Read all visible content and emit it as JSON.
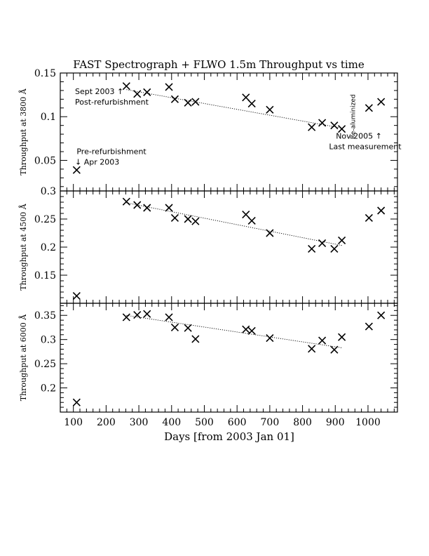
{
  "chart_data": {
    "type": "scatter",
    "title": "FAST Spectrograph + FLWO 1.5m Throughput vs time",
    "xlabel": "Days [from 2003 Jan 01]",
    "xlim": [
      60,
      1090
    ],
    "x_ticks": [
      100,
      200,
      300,
      400,
      500,
      600,
      700,
      800,
      900,
      1000
    ],
    "x_tick_labels": [
      "100",
      "200",
      "300",
      "400",
      "500",
      "600",
      "700",
      "800",
      "900",
      "1000"
    ],
    "marker": "x",
    "panels": [
      {
        "ylabel": "Throughput at 3800 Å",
        "ylim": [
          0.015,
          0.15
        ],
        "y_ticks": [
          0.05,
          0.1,
          0.15
        ],
        "y_tick_labels": [
          "0.05",
          "0.1",
          "0.15"
        ],
        "points": [
          {
            "x": 110,
            "y": 0.039
          },
          {
            "x": 262,
            "y": 0.135
          },
          {
            "x": 295,
            "y": 0.126
          },
          {
            "x": 325,
            "y": 0.128
          },
          {
            "x": 392,
            "y": 0.134
          },
          {
            "x": 410,
            "y": 0.12
          },
          {
            "x": 450,
            "y": 0.116
          },
          {
            "x": 473,
            "y": 0.117
          },
          {
            "x": 627,
            "y": 0.122
          },
          {
            "x": 645,
            "y": 0.115
          },
          {
            "x": 700,
            "y": 0.108
          },
          {
            "x": 828,
            "y": 0.088
          },
          {
            "x": 860,
            "y": 0.093
          },
          {
            "x": 897,
            "y": 0.09
          },
          {
            "x": 920,
            "y": 0.086
          },
          {
            "x": 1003,
            "y": 0.11
          },
          {
            "x": 1040,
            "y": 0.117
          }
        ],
        "fit_line": {
          "x": [
            262,
            920
          ],
          "y": [
            0.131,
            0.087
          ]
        },
        "annotations": [
          {
            "text": "Sept 2003 ↑",
            "x": 105,
            "y": 0.126
          },
          {
            "text": "Post-refurbishment",
            "x": 105,
            "y": 0.114
          },
          {
            "text": "Pre-refurbishment",
            "x": 110,
            "y": 0.057
          },
          {
            "text": "↓ Apr 2003",
            "x": 105,
            "y": 0.045
          },
          {
            "text": "Nov 2005 ↑",
            "x": 902,
            "y": 0.075
          },
          {
            "text": "Last measurement",
            "x": 881,
            "y": 0.063
          },
          {
            "text": "Re-aluminized",
            "x": 960,
            "y": 0.1,
            "rotate": -90
          }
        ]
      },
      {
        "ylabel": "Throughput at 4500 Å",
        "ylim": [
          0.1,
          0.3
        ],
        "y_ticks": [
          0.15,
          0.2,
          0.25,
          0.3
        ],
        "y_tick_labels": [
          "0.15",
          "0.2",
          "0.25",
          "0.3"
        ],
        "points": [
          {
            "x": 110,
            "y": 0.113
          },
          {
            "x": 262,
            "y": 0.281
          },
          {
            "x": 295,
            "y": 0.275
          },
          {
            "x": 325,
            "y": 0.27
          },
          {
            "x": 392,
            "y": 0.27
          },
          {
            "x": 410,
            "y": 0.252
          },
          {
            "x": 450,
            "y": 0.25
          },
          {
            "x": 473,
            "y": 0.246
          },
          {
            "x": 627,
            "y": 0.258
          },
          {
            "x": 645,
            "y": 0.247
          },
          {
            "x": 700,
            "y": 0.225
          },
          {
            "x": 828,
            "y": 0.197
          },
          {
            "x": 860,
            "y": 0.207
          },
          {
            "x": 897,
            "y": 0.197
          },
          {
            "x": 920,
            "y": 0.212
          },
          {
            "x": 1003,
            "y": 0.252
          },
          {
            "x": 1040,
            "y": 0.265
          }
        ],
        "fit_line": {
          "x": [
            262,
            920
          ],
          "y": [
            0.279,
            0.203
          ]
        },
        "annotations": []
      },
      {
        "ylabel": "Throughput at 6000 Å",
        "ylim": [
          0.15,
          0.375
        ],
        "y_ticks": [
          0.2,
          0.25,
          0.3,
          0.35
        ],
        "y_tick_labels": [
          "0.2",
          "0.25",
          "0.3",
          "0.35"
        ],
        "points": [
          {
            "x": 110,
            "y": 0.17
          },
          {
            "x": 262,
            "y": 0.346
          },
          {
            "x": 295,
            "y": 0.351
          },
          {
            "x": 325,
            "y": 0.353
          },
          {
            "x": 392,
            "y": 0.346
          },
          {
            "x": 410,
            "y": 0.325
          },
          {
            "x": 450,
            "y": 0.324
          },
          {
            "x": 473,
            "y": 0.301
          },
          {
            "x": 627,
            "y": 0.321
          },
          {
            "x": 645,
            "y": 0.318
          },
          {
            "x": 700,
            "y": 0.303
          },
          {
            "x": 828,
            "y": 0.281
          },
          {
            "x": 860,
            "y": 0.298
          },
          {
            "x": 897,
            "y": 0.279
          },
          {
            "x": 920,
            "y": 0.305
          },
          {
            "x": 1003,
            "y": 0.327
          },
          {
            "x": 1040,
            "y": 0.35
          }
        ],
        "fit_line": {
          "x": [
            262,
            920
          ],
          "y": [
            0.35,
            0.283
          ]
        },
        "annotations": []
      }
    ]
  }
}
